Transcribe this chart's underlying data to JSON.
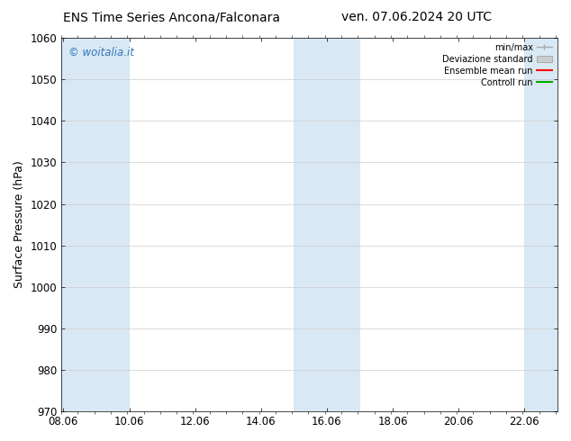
{
  "title_left": "ENS Time Series Ancona/Falconara",
  "title_right": "ven. 07.06.2024 20 UTC",
  "ylabel": "Surface Pressure (hPa)",
  "ylim": [
    970,
    1060
  ],
  "yticks": [
    970,
    980,
    990,
    1000,
    1010,
    1020,
    1030,
    1040,
    1050,
    1060
  ],
  "xlim_start": 8.0,
  "xlim_end": 23.06,
  "xticks": [
    8.06,
    10.06,
    12.06,
    14.06,
    16.06,
    18.06,
    20.06,
    22.06
  ],
  "xticklabels": [
    "08.06",
    "10.06",
    "12.06",
    "14.06",
    "16.06",
    "18.06",
    "20.06",
    "22.06"
  ],
  "shaded_bands": [
    {
      "x_start": 8.0,
      "x_end": 10.06
    },
    {
      "x_start": 15.06,
      "x_end": 17.06
    },
    {
      "x_start": 22.06,
      "x_end": 23.06
    }
  ],
  "shade_color": "#D8E8F4",
  "watermark": "© woitalia.it",
  "watermark_color": "#3377BB",
  "legend_items": [
    {
      "label": "min/max",
      "color": "#AAAAAA",
      "type": "errorbar"
    },
    {
      "label": "Deviazione standard",
      "color": "#CCCCCC",
      "type": "band"
    },
    {
      "label": "Ensemble mean run",
      "color": "#FF0000",
      "type": "line"
    },
    {
      "label": "Controll run",
      "color": "#00AA00",
      "type": "line"
    }
  ],
  "bg_color": "#FFFFFF",
  "grid_color": "#CCCCCC",
  "title_fontsize": 10,
  "axis_fontsize": 9,
  "tick_fontsize": 8.5
}
